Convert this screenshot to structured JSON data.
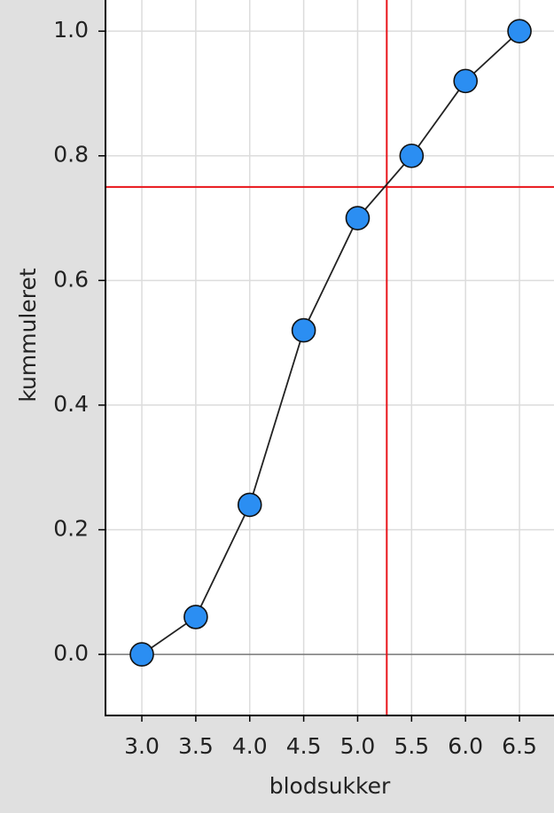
{
  "chart_data": {
    "type": "line",
    "x_label": "blodsukker",
    "y_label": "kummuleret",
    "x": [
      3.0,
      3.5,
      4.0,
      4.5,
      5.0,
      5.5,
      6.0,
      6.5
    ],
    "series": [
      {
        "color": "#2b8ef2",
        "values": [
          0,
          0.06,
          0.24,
          0.52,
          0.7,
          0.8,
          0.92,
          1.0
        ]
      }
    ],
    "xlim": [
      2.663,
      6.82
    ],
    "ylim": [
      -0.098,
      1.05
    ],
    "xticks": [
      {
        "value": 3,
        "label": "3.0"
      },
      3.5,
      {
        "value": 4,
        "label": "4.0"
      },
      4.5,
      {
        "value": 5,
        "label": "5.0"
      },
      5.5,
      {
        "value": 6,
        "label": "6.0"
      },
      6.5
    ],
    "yticks": [
      {
        "value": 0,
        "label": "0.0"
      },
      0.2,
      0.4,
      0.6,
      0.8,
      {
        "value": 1,
        "label": "1.0"
      }
    ],
    "grid": true,
    "hline": 0.75,
    "vline": 5.27,
    "ref_color": "#e8141a"
  }
}
